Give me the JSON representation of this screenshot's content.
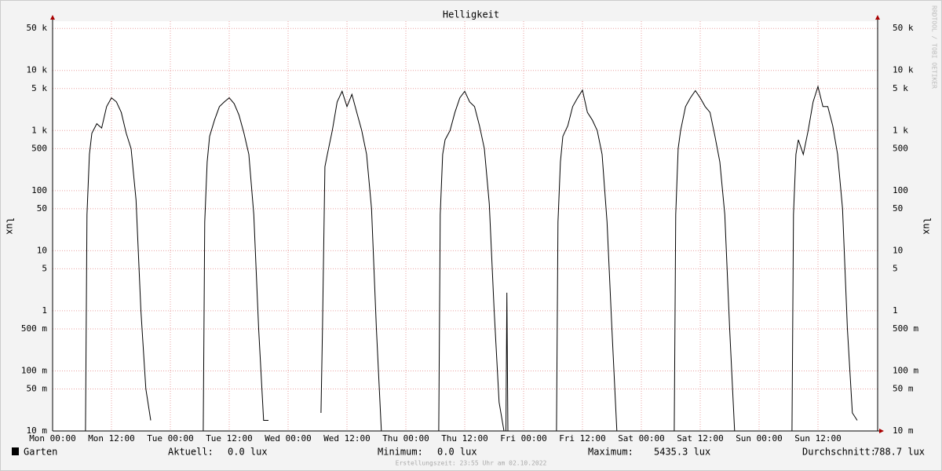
{
  "chart_data": {
    "type": "line",
    "title": "Helligkeit",
    "ylabel": "lux",
    "watermark": "RRDTOOL / TOBI OETIKER",
    "footer": "Erstellungszeit: 23:55 Uhr am 02.10.2022",
    "log_y": true,
    "grid": true,
    "xlim": [
      0,
      168
    ],
    "xticks": [
      {
        "value": 0,
        "label": "Mon 00:00"
      },
      {
        "value": 12,
        "label": "Mon 12:00"
      },
      {
        "value": 24,
        "label": "Tue 00:00"
      },
      {
        "value": 36,
        "label": "Tue 12:00"
      },
      {
        "value": 48,
        "label": "Wed 00:00"
      },
      {
        "value": 60,
        "label": "Wed 12:00"
      },
      {
        "value": 72,
        "label": "Thu 00:00"
      },
      {
        "value": 84,
        "label": "Thu 12:00"
      },
      {
        "value": 96,
        "label": "Fri 00:00"
      },
      {
        "value": 108,
        "label": "Fri 12:00"
      },
      {
        "value": 120,
        "label": "Sat 00:00"
      },
      {
        "value": 132,
        "label": "Sat 12:00"
      },
      {
        "value": 144,
        "label": "Sun 00:00"
      },
      {
        "value": 156,
        "label": "Sun 12:00"
      }
    ],
    "ylim": [
      0.01,
      66000
    ],
    "yticks": [
      {
        "value": 0.01,
        "label": "10 m"
      },
      {
        "value": 0.05,
        "label": "50 m"
      },
      {
        "value": 0.1,
        "label": "100 m"
      },
      {
        "value": 0.5,
        "label": "500 m"
      },
      1,
      5,
      10,
      50,
      100,
      500,
      {
        "value": 1000,
        "label": "1 k"
      },
      {
        "value": 5000,
        "label": "5 k"
      },
      {
        "value": 10000,
        "label": "10 k"
      },
      {
        "value": 50000,
        "label": "50 k"
      }
    ],
    "x": [
      6.7,
      7,
      7.5,
      8,
      9,
      10,
      11,
      12,
      13,
      14,
      15,
      16,
      17,
      18,
      19,
      20,
      22,
      30.7,
      31,
      31.5,
      32,
      33,
      34,
      35,
      36,
      37,
      38,
      39,
      40,
      41,
      42,
      43,
      44,
      46,
      54.7,
      55,
      55.5,
      56,
      57,
      58,
      59,
      60,
      61,
      62,
      63,
      64,
      65,
      66,
      67,
      68,
      70,
      78.7,
      79,
      79.5,
      80,
      81,
      82,
      83,
      84,
      85,
      86,
      87,
      88,
      89,
      90,
      91,
      92,
      92.2,
      92.4,
      92.6,
      92.8,
      93,
      102.7,
      103,
      103.5,
      104,
      105,
      106,
      107,
      108,
      109,
      110,
      111,
      112,
      113,
      114,
      115,
      116,
      118,
      126.7,
      127,
      127.5,
      128,
      129,
      130,
      131,
      132,
      133,
      134,
      135,
      136,
      137,
      138,
      139,
      140,
      142,
      150.7,
      151,
      151.5,
      152,
      153,
      154,
      155,
      156,
      157,
      158,
      159,
      160,
      161,
      162,
      163,
      164
    ],
    "series": [
      {
        "name": "Garten",
        "color": "#000000",
        "values": [
          0.01,
          40,
          400,
          900,
          1300,
          1100,
          2500,
          3500,
          3000,
          2000,
          900,
          500,
          70,
          1,
          0.05,
          0.015,
          null,
          0.01,
          30,
          300,
          800,
          1500,
          2500,
          3000,
          3500,
          2800,
          1800,
          900,
          400,
          40,
          0.5,
          0.015,
          0.015,
          null,
          0.02,
          0.5,
          250,
          400,
          1000,
          3000,
          4500,
          2500,
          4000,
          2000,
          1000,
          400,
          50,
          0.5,
          0.01,
          0.01,
          null,
          0.01,
          40,
          400,
          700,
          1000,
          2000,
          3500,
          4500,
          3000,
          2500,
          1200,
          500,
          60,
          1,
          0.03,
          0.01,
          null,
          0.01,
          2,
          0.01,
          null,
          0.01,
          30,
          300,
          800,
          1200,
          2500,
          3500,
          4700,
          2000,
          1500,
          1000,
          400,
          30,
          0.5,
          0.01,
          0.01,
          null,
          0.01,
          40,
          500,
          1000,
          2500,
          3500,
          4600,
          3500,
          2500,
          2000,
          800,
          300,
          40,
          0.5,
          0.01,
          0.01,
          null,
          0.01,
          40,
          400,
          700,
          400,
          1000,
          3000,
          5400,
          2500,
          2500,
          1200,
          400,
          50,
          0.5,
          0.02,
          0.015
        ]
      }
    ],
    "stats": [
      {
        "label": "Aktuell:",
        "value": "0.0 lux"
      },
      {
        "label": "Minimum:",
        "value": "0.0 lux"
      },
      {
        "label": "Maximum:",
        "value": "5435.3 lux"
      },
      {
        "label": "Durchschnitt:",
        "value": "788.7 lux"
      }
    ]
  }
}
